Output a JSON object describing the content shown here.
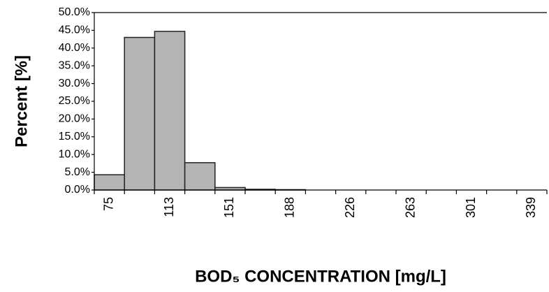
{
  "chart_data": {
    "type": "bar",
    "categories": [
      "75",
      null,
      "113",
      null,
      "151",
      null,
      "188",
      null,
      "226",
      null,
      "263",
      null,
      "301",
      null,
      "339"
    ],
    "values": [
      4.3,
      43.0,
      44.7,
      7.7,
      0.7,
      0.2,
      0.1,
      0,
      0,
      0,
      0,
      0,
      0,
      0,
      0
    ],
    "color": "#b4b4b4",
    "ylim": [
      0,
      50
    ],
    "yticks": [
      {
        "value": 0,
        "label": "0.0%"
      },
      {
        "value": 5,
        "label": "5.0%"
      },
      {
        "value": 10,
        "label": "10.0%"
      },
      {
        "value": 15,
        "label": "15.0%"
      },
      {
        "value": 20,
        "label": "20.0%"
      },
      {
        "value": 25,
        "label": "25.0%"
      },
      {
        "value": 30,
        "label": "30.0%"
      },
      {
        "value": 35,
        "label": "35.0%"
      },
      {
        "value": 40,
        "label": "40.0%"
      },
      {
        "value": 45,
        "label": "45.0%"
      },
      {
        "value": 50,
        "label": "50.0%"
      }
    ],
    "y_label": "Percent [%]",
    "x_label": "BOD₅ CONCENTRATION [mg/L]"
  }
}
